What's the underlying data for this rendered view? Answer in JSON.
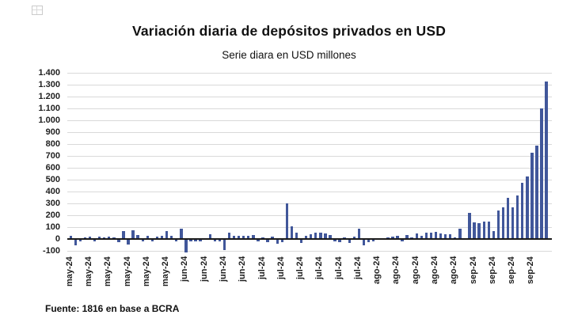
{
  "source": "Fuente: 1816 en base a BCRA",
  "colors": {
    "bar": "#41579a",
    "gridline": "#d9d9d9",
    "zero_axis": "#1a1a1a",
    "text": "#1f1f1f"
  },
  "icons": {
    "top_left": "placeholder-grid-icon"
  },
  "chart_data": {
    "type": "bar",
    "title": "Variación diaria de depósitos privados en USD",
    "subtitle": "Serie diara en USD millones",
    "xlabel": "",
    "ylabel": "",
    "unit": "USD millones",
    "ylim": [
      -100,
      1400
    ],
    "ytick_interval": 100,
    "grid": true,
    "legend": false,
    "ytick_labels": [
      "1.400",
      "1.300",
      "1.200",
      "1.100",
      "1.000",
      "900",
      "800",
      "700",
      "600",
      "500",
      "400",
      "300",
      "200",
      "100",
      "0",
      "-100"
    ],
    "xtick_labels": [
      "may-24",
      "may-24",
      "may-24",
      "may-24",
      "may-24",
      "may-24",
      "jun-24",
      "jun-24",
      "jun-24",
      "jun-24",
      "jul-24",
      "jul-24",
      "jul-24",
      "jul-24",
      "jul-24",
      "jul-24",
      "ago-24",
      "ago-24",
      "ago-24",
      "ago-24",
      "ago-24",
      "sep-24",
      "sep-24",
      "sep-24",
      "sep-24"
    ],
    "xtick_every_n_bars": 4,
    "values": [
      30,
      -45,
      -15,
      12,
      18,
      -10,
      22,
      15,
      18,
      15,
      -20,
      65,
      -40,
      75,
      35,
      -15,
      25,
      -12,
      20,
      25,
      70,
      30,
      -15,
      85,
      -105,
      -10,
      -10,
      -15,
      10,
      40,
      -15,
      -10,
      -85,
      55,
      28,
      28,
      28,
      30,
      32,
      -10,
      15,
      -20,
      20,
      -35,
      -20,
      300,
      110,
      55,
      -25,
      25,
      40,
      55,
      55,
      45,
      35,
      -15,
      -20,
      15,
      -25,
      20,
      90,
      -45,
      -18,
      -10,
      10,
      10,
      15,
      20,
      25,
      -15,
      35,
      12,
      45,
      30,
      55,
      55,
      60,
      45,
      40,
      40,
      15,
      85,
      10,
      220,
      140,
      135,
      150,
      145,
      70,
      240,
      265,
      350,
      265,
      365,
      475,
      530,
      725,
      790,
      1100,
      1330
    ]
  }
}
